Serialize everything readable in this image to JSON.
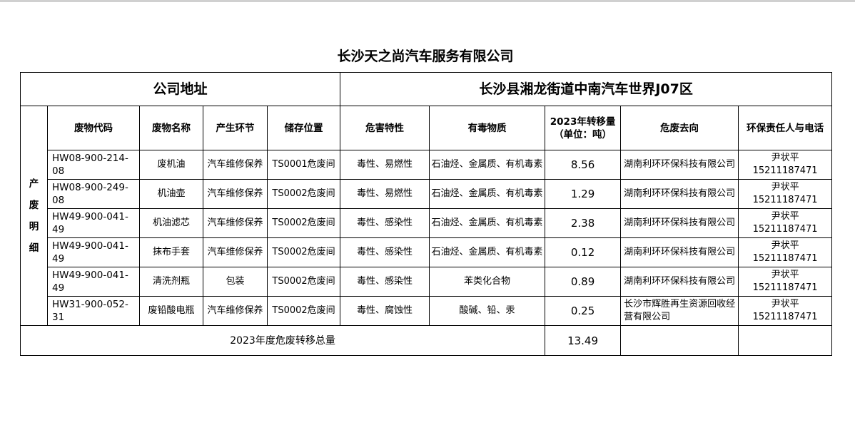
{
  "title": "长沙天之尚汽车服务有限公司",
  "address_label": "公司地址",
  "address_value": "长沙县湘龙街道中南汽车世界J07区",
  "side_label": "产废明细",
  "headers": [
    "废物代码",
    "废物名称",
    "产生环节",
    "储存位置",
    "危害特性",
    "有毒物质",
    "2023年转移量",
    "（单位：吨）",
    "危废去向",
    "环保责任人与电话"
  ],
  "rows": [
    {
      "code": "HW08-900-214-08",
      "name": "废机油",
      "stage": "汽车维修保养",
      "storage": "TS0001危废间",
      "hazard": "毒性、易燃性",
      "toxic": "石油烃、金属质、有机毒素",
      "qty": "8.56",
      "dest": "湖南利环环保科技有限公司",
      "person": "尹状平",
      "phone": "15211187471"
    },
    {
      "code": "HW08-900-249-08",
      "name": "机油壶",
      "stage": "汽车维修保养",
      "storage": "TS0002危废间",
      "hazard": "毒性、易燃性",
      "toxic": "石油烃、金属质、有机毒素",
      "qty": "1.29",
      "dest": "湖南利环环保科技有限公司",
      "person": "尹状平",
      "phone": "15211187471"
    },
    {
      "code": "HW49-900-041-49",
      "name": "机油滤芯",
      "stage": "汽车维修保养",
      "storage": "TS0002危废间",
      "hazard": "毒性、感染性",
      "toxic": "石油烃、金属质、有机毒素",
      "qty": "2.38",
      "dest": "湖南利环环保科技有限公司",
      "person": "尹状平",
      "phone": "15211187471"
    },
    {
      "code": "HW49-900-041-49",
      "name": "抹布手套",
      "stage": "汽车维修保养",
      "storage": "TS0002危废间",
      "hazard": "毒性、感染性",
      "toxic": "石油烃、金属质、有机毒素",
      "qty": "0.12",
      "dest": "湖南利环环保科技有限公司",
      "person": "尹状平",
      "phone": "15211187471"
    },
    {
      "code": "HW49-900-041-49",
      "name": "清洗剂瓶",
      "stage": "包装",
      "storage": "TS0002危废间",
      "hazard": "毒性、感染性",
      "toxic": "苯类化合物",
      "qty": "0.89",
      "dest": "湖南利环环保科技有限公司",
      "person": "尹状平",
      "phone": "15211187471"
    },
    {
      "code": "HW31-900-052-31",
      "name": "废铅酸电瓶",
      "stage": "汽车维修保养",
      "storage": "TS0002危废间",
      "hazard": "毒性、腐蚀性",
      "toxic": "酸碱、铅、汞",
      "qty": "0.25",
      "dest": "长沙市辉胜再生资源回收经营有限公司",
      "person": "尹状平",
      "phone": "15211187471"
    }
  ],
  "total_label": "2023年度危废转移总量",
  "total_value": "13.49"
}
